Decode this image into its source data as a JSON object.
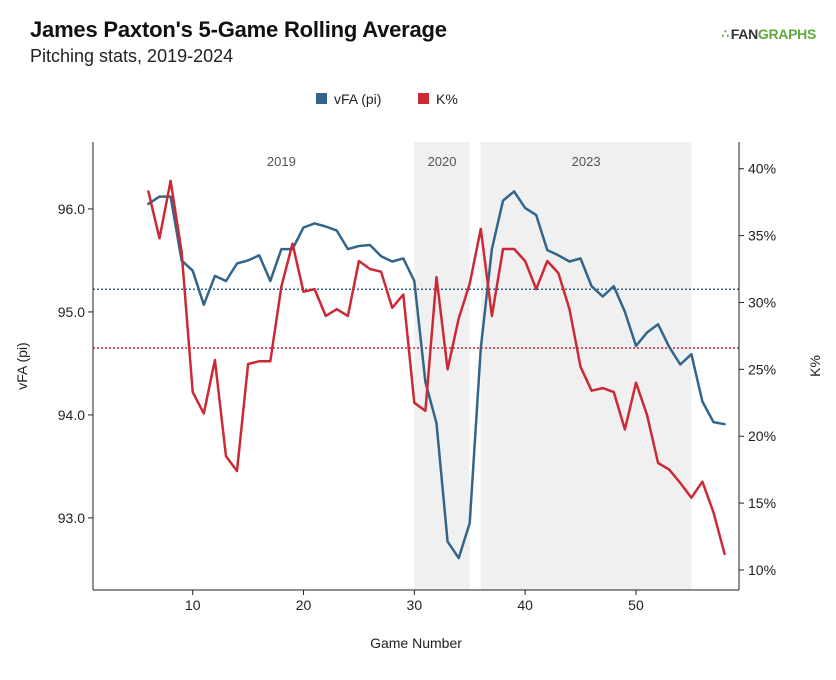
{
  "header": {
    "title": "James Paxton's 5-Game Rolling Average",
    "subtitle": "Pitching stats, 2019-2024",
    "logo_mark": "∴",
    "logo_fan": "FAN",
    "logo_graphs": "GRAPHS"
  },
  "chart_data": {
    "type": "line",
    "title": "James Paxton's 5-Game Rolling Average",
    "subtitle": "Pitching stats, 2019-2024",
    "xlabel": "Game Number",
    "ylabel_left": "vFA (pi)",
    "ylabel_right": "K%",
    "xlim": [
      1,
      59.3
    ],
    "ylim_left": [
      92.3,
      96.65
    ],
    "ylim_right": [
      0.085,
      0.42
    ],
    "x_ticks": [
      10,
      20,
      30,
      40,
      50
    ],
    "y_left_ticks": [
      93.0,
      94.0,
      95.0,
      96.0
    ],
    "y_left_tick_labels": [
      "93.0",
      "94.0",
      "95.0",
      "96.0"
    ],
    "y_right_ticks": [
      0.1,
      0.15,
      0.2,
      0.25,
      0.3,
      0.35,
      0.4
    ],
    "y_right_tick_labels": [
      "10%",
      "15%",
      "20%",
      "25%",
      "30%",
      "35%",
      "40%"
    ],
    "legend_position": "top-center",
    "grid": false,
    "shaded_regions": [
      {
        "label": "2020",
        "x_start": 30,
        "x_end": 35,
        "color": "#f0f0f0"
      },
      {
        "label": "2023",
        "x_start": 36,
        "x_end": 55,
        "color": "#f0f0f0"
      }
    ],
    "region_labels": [
      {
        "label": "2019",
        "x": 18
      },
      {
        "label": "2020",
        "x": 32.5
      },
      {
        "label": "2023",
        "x": 45.5
      }
    ],
    "reference_lines": [
      {
        "series": "vFA (pi)",
        "axis": "left",
        "value": 95.22,
        "color": "#33658a"
      },
      {
        "series": "K%",
        "axis": "right",
        "value": 0.266,
        "color": "#cc2936"
      }
    ],
    "series": [
      {
        "name": "vFA (pi)",
        "axis": "left",
        "color": "#33658a",
        "x": [
          6,
          7,
          8,
          9,
          10,
          11,
          12,
          13,
          14,
          15,
          16,
          17,
          18,
          19,
          20,
          21,
          22,
          23,
          24,
          25,
          26,
          27,
          28,
          29,
          30,
          31,
          32,
          33,
          34,
          35,
          36,
          37,
          38,
          39,
          40,
          41,
          42,
          43,
          44,
          45,
          46,
          47,
          48,
          49,
          50,
          51,
          52,
          53,
          54,
          55,
          56,
          57,
          58
        ],
        "values": [
          96.05,
          96.12,
          96.12,
          95.5,
          95.4,
          95.07,
          95.35,
          95.3,
          95.47,
          95.5,
          95.55,
          95.3,
          95.61,
          95.61,
          95.82,
          95.86,
          95.83,
          95.79,
          95.61,
          95.64,
          95.65,
          95.54,
          95.49,
          95.52,
          95.3,
          94.32,
          93.92,
          92.77,
          92.61,
          92.95,
          94.65,
          95.61,
          96.08,
          96.17,
          96.01,
          95.94,
          95.6,
          95.55,
          95.49,
          95.52,
          95.25,
          95.15,
          95.25,
          95.0,
          94.67,
          94.8,
          94.88,
          94.66,
          94.49,
          94.59,
          94.13,
          93.93,
          93.91
        ]
      },
      {
        "name": "K%",
        "axis": "right",
        "color": "#cc2936",
        "x": [
          6,
          7,
          8,
          9,
          10,
          11,
          12,
          13,
          14,
          15,
          16,
          17,
          18,
          19,
          20,
          21,
          22,
          23,
          24,
          25,
          26,
          27,
          28,
          29,
          30,
          31,
          32,
          33,
          34,
          35,
          36,
          37,
          38,
          39,
          40,
          41,
          42,
          43,
          44,
          45,
          46,
          47,
          48,
          49,
          50,
          51,
          52,
          53,
          54,
          55,
          56,
          57,
          58
        ],
        "values": [
          0.383,
          0.348,
          0.391,
          0.338,
          0.233,
          0.217,
          0.257,
          0.185,
          0.174,
          0.254,
          0.256,
          0.256,
          0.312,
          0.344,
          0.308,
          0.31,
          0.29,
          0.295,
          0.29,
          0.331,
          0.325,
          0.323,
          0.296,
          0.306,
          0.225,
          0.219,
          0.319,
          0.25,
          0.288,
          0.314,
          0.355,
          0.29,
          0.34,
          0.34,
          0.331,
          0.31,
          0.331,
          0.322,
          0.295,
          0.252,
          0.234,
          0.236,
          0.233,
          0.205,
          0.24,
          0.216,
          0.18,
          0.175,
          0.165,
          0.154,
          0.166,
          0.143,
          0.112
        ]
      }
    ]
  }
}
